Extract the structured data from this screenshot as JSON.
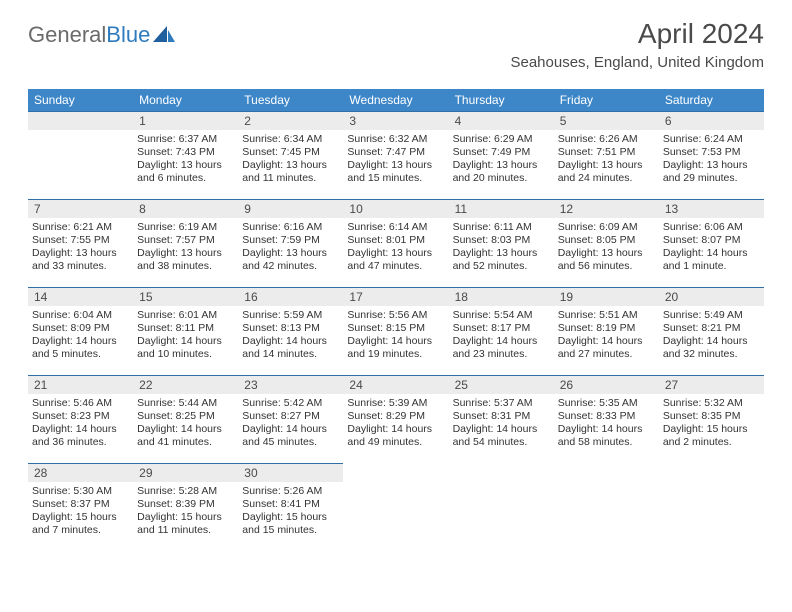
{
  "logo": {
    "text_gray": "General",
    "text_blue": "Blue"
  },
  "header": {
    "month_title": "April 2024",
    "location": "Seahouses, England, United Kingdom"
  },
  "weekdays": [
    "Sunday",
    "Monday",
    "Tuesday",
    "Wednesday",
    "Thursday",
    "Friday",
    "Saturday"
  ],
  "colors": {
    "header_bg": "#3d87c9",
    "header_text": "#ffffff",
    "row_sep": "#2e6fa8",
    "daynum_bg": "#ececec",
    "logo_gray": "#6b6b6b",
    "logo_blue": "#2e7bbd"
  },
  "weeks": [
    [
      null,
      {
        "n": "1",
        "sr": "Sunrise: 6:37 AM",
        "ss": "Sunset: 7:43 PM",
        "dl": "Daylight: 13 hours and 6 minutes."
      },
      {
        "n": "2",
        "sr": "Sunrise: 6:34 AM",
        "ss": "Sunset: 7:45 PM",
        "dl": "Daylight: 13 hours and 11 minutes."
      },
      {
        "n": "3",
        "sr": "Sunrise: 6:32 AM",
        "ss": "Sunset: 7:47 PM",
        "dl": "Daylight: 13 hours and 15 minutes."
      },
      {
        "n": "4",
        "sr": "Sunrise: 6:29 AM",
        "ss": "Sunset: 7:49 PM",
        "dl": "Daylight: 13 hours and 20 minutes."
      },
      {
        "n": "5",
        "sr": "Sunrise: 6:26 AM",
        "ss": "Sunset: 7:51 PM",
        "dl": "Daylight: 13 hours and 24 minutes."
      },
      {
        "n": "6",
        "sr": "Sunrise: 6:24 AM",
        "ss": "Sunset: 7:53 PM",
        "dl": "Daylight: 13 hours and 29 minutes."
      }
    ],
    [
      {
        "n": "7",
        "sr": "Sunrise: 6:21 AM",
        "ss": "Sunset: 7:55 PM",
        "dl": "Daylight: 13 hours and 33 minutes."
      },
      {
        "n": "8",
        "sr": "Sunrise: 6:19 AM",
        "ss": "Sunset: 7:57 PM",
        "dl": "Daylight: 13 hours and 38 minutes."
      },
      {
        "n": "9",
        "sr": "Sunrise: 6:16 AM",
        "ss": "Sunset: 7:59 PM",
        "dl": "Daylight: 13 hours and 42 minutes."
      },
      {
        "n": "10",
        "sr": "Sunrise: 6:14 AM",
        "ss": "Sunset: 8:01 PM",
        "dl": "Daylight: 13 hours and 47 minutes."
      },
      {
        "n": "11",
        "sr": "Sunrise: 6:11 AM",
        "ss": "Sunset: 8:03 PM",
        "dl": "Daylight: 13 hours and 52 minutes."
      },
      {
        "n": "12",
        "sr": "Sunrise: 6:09 AM",
        "ss": "Sunset: 8:05 PM",
        "dl": "Daylight: 13 hours and 56 minutes."
      },
      {
        "n": "13",
        "sr": "Sunrise: 6:06 AM",
        "ss": "Sunset: 8:07 PM",
        "dl": "Daylight: 14 hours and 1 minute."
      }
    ],
    [
      {
        "n": "14",
        "sr": "Sunrise: 6:04 AM",
        "ss": "Sunset: 8:09 PM",
        "dl": "Daylight: 14 hours and 5 minutes."
      },
      {
        "n": "15",
        "sr": "Sunrise: 6:01 AM",
        "ss": "Sunset: 8:11 PM",
        "dl": "Daylight: 14 hours and 10 minutes."
      },
      {
        "n": "16",
        "sr": "Sunrise: 5:59 AM",
        "ss": "Sunset: 8:13 PM",
        "dl": "Daylight: 14 hours and 14 minutes."
      },
      {
        "n": "17",
        "sr": "Sunrise: 5:56 AM",
        "ss": "Sunset: 8:15 PM",
        "dl": "Daylight: 14 hours and 19 minutes."
      },
      {
        "n": "18",
        "sr": "Sunrise: 5:54 AM",
        "ss": "Sunset: 8:17 PM",
        "dl": "Daylight: 14 hours and 23 minutes."
      },
      {
        "n": "19",
        "sr": "Sunrise: 5:51 AM",
        "ss": "Sunset: 8:19 PM",
        "dl": "Daylight: 14 hours and 27 minutes."
      },
      {
        "n": "20",
        "sr": "Sunrise: 5:49 AM",
        "ss": "Sunset: 8:21 PM",
        "dl": "Daylight: 14 hours and 32 minutes."
      }
    ],
    [
      {
        "n": "21",
        "sr": "Sunrise: 5:46 AM",
        "ss": "Sunset: 8:23 PM",
        "dl": "Daylight: 14 hours and 36 minutes."
      },
      {
        "n": "22",
        "sr": "Sunrise: 5:44 AM",
        "ss": "Sunset: 8:25 PM",
        "dl": "Daylight: 14 hours and 41 minutes."
      },
      {
        "n": "23",
        "sr": "Sunrise: 5:42 AM",
        "ss": "Sunset: 8:27 PM",
        "dl": "Daylight: 14 hours and 45 minutes."
      },
      {
        "n": "24",
        "sr": "Sunrise: 5:39 AM",
        "ss": "Sunset: 8:29 PM",
        "dl": "Daylight: 14 hours and 49 minutes."
      },
      {
        "n": "25",
        "sr": "Sunrise: 5:37 AM",
        "ss": "Sunset: 8:31 PM",
        "dl": "Daylight: 14 hours and 54 minutes."
      },
      {
        "n": "26",
        "sr": "Sunrise: 5:35 AM",
        "ss": "Sunset: 8:33 PM",
        "dl": "Daylight: 14 hours and 58 minutes."
      },
      {
        "n": "27",
        "sr": "Sunrise: 5:32 AM",
        "ss": "Sunset: 8:35 PM",
        "dl": "Daylight: 15 hours and 2 minutes."
      }
    ],
    [
      {
        "n": "28",
        "sr": "Sunrise: 5:30 AM",
        "ss": "Sunset: 8:37 PM",
        "dl": "Daylight: 15 hours and 7 minutes."
      },
      {
        "n": "29",
        "sr": "Sunrise: 5:28 AM",
        "ss": "Sunset: 8:39 PM",
        "dl": "Daylight: 15 hours and 11 minutes."
      },
      {
        "n": "30",
        "sr": "Sunrise: 5:26 AM",
        "ss": "Sunset: 8:41 PM",
        "dl": "Daylight: 15 hours and 15 minutes."
      },
      null,
      null,
      null,
      null
    ]
  ]
}
